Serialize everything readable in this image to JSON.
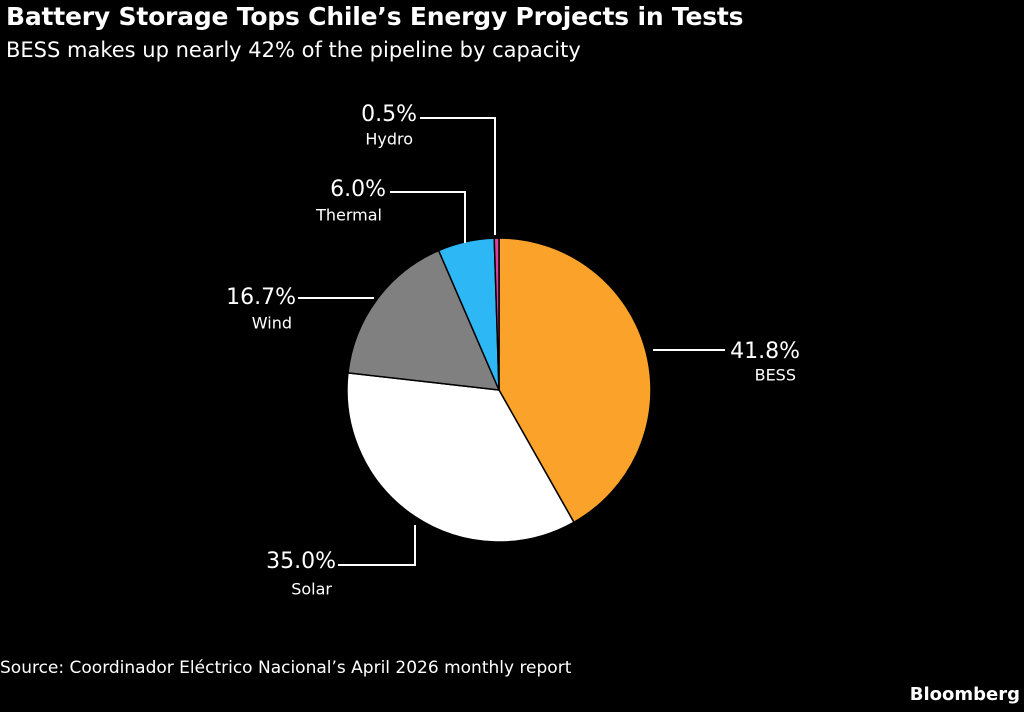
{
  "header": {
    "title": "Battery Storage Tops Chile’s Energy Projects in Tests",
    "subtitle": "BESS makes up nearly 42% of the pipeline by capacity"
  },
  "footer": {
    "source": "Source: Coordinador Eléctrico Nacional’s April 2026 monthly report",
    "brand": "Bloomberg"
  },
  "chart_data": {
    "type": "pie",
    "title": "Battery Storage Tops Chile’s Energy Projects in Tests",
    "subtitle": "BESS makes up nearly 42% of the pipeline by capacity",
    "slices": [
      {
        "label": "BESS",
        "value": 41.8,
        "display": "41.8%",
        "color": "#FBA22B"
      },
      {
        "label": "Solar",
        "value": 35.0,
        "display": "35.0%",
        "color": "#FFFFFF"
      },
      {
        "label": "Wind",
        "value": 16.7,
        "display": "16.7%",
        "color": "#808080"
      },
      {
        "label": "Thermal",
        "value": 6.0,
        "display": "6.0%",
        "color": "#2DB8F5"
      },
      {
        "label": "Hydro",
        "value": 0.5,
        "display": "0.5%",
        "color": "#E040A0"
      }
    ],
    "legend": "none"
  }
}
